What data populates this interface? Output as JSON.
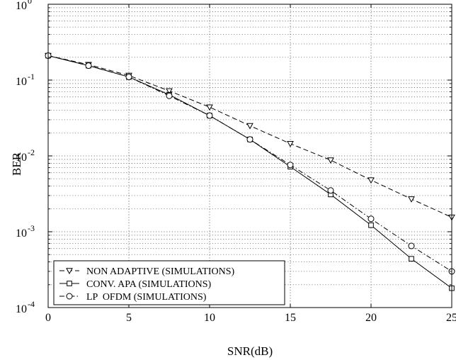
{
  "chart_data": {
    "type": "line",
    "title": "",
    "xlabel": "SNR(dB)",
    "ylabel": "BER",
    "xlim": [
      0,
      25
    ],
    "ylim": [
      0.0001,
      1
    ],
    "yscale": "log",
    "grid": true,
    "legend_position": "bottom-left",
    "x_ticks": [
      "0",
      "5",
      "10",
      "15",
      "20",
      "25"
    ],
    "y_ticks": [
      {
        "base": "10",
        "exp": "-4"
      },
      {
        "base": "10",
        "exp": "-3"
      },
      {
        "base": "10",
        "exp": "-2"
      },
      {
        "base": "10",
        "exp": "-1"
      },
      {
        "base": "10",
        "exp": "0"
      }
    ],
    "x": [
      0,
      2.5,
      5,
      7.5,
      10,
      12.5,
      15,
      17.5,
      20,
      22.5,
      25
    ],
    "series": [
      {
        "name": "NON ADAPTIVE (SIMULATIONS)",
        "marker": "triangle-down",
        "dash": "dashed",
        "values": [
          0.21,
          0.16,
          0.115,
          0.072,
          0.044,
          0.025,
          0.0145,
          0.0088,
          0.0048,
          0.0027,
          0.00155
        ]
      },
      {
        "name": "CONV. APA (SIMULATIONS)",
        "marker": "square",
        "dash": "solid",
        "values": [
          0.21,
          0.155,
          0.11,
          0.064,
          0.034,
          0.0165,
          0.0072,
          0.0031,
          0.00122,
          0.00044,
          0.00018
        ]
      },
      {
        "name": "LP  OFDM (SIMULATIONS)",
        "marker": "circle",
        "dash": "dashdot",
        "values": [
          0.21,
          0.155,
          0.11,
          0.062,
          0.034,
          0.0165,
          0.0076,
          0.0035,
          0.00148,
          0.00065,
          0.0003
        ]
      }
    ]
  },
  "colors": {
    "line": "#000000",
    "grid": "#555555",
    "background": "#ffffff"
  }
}
